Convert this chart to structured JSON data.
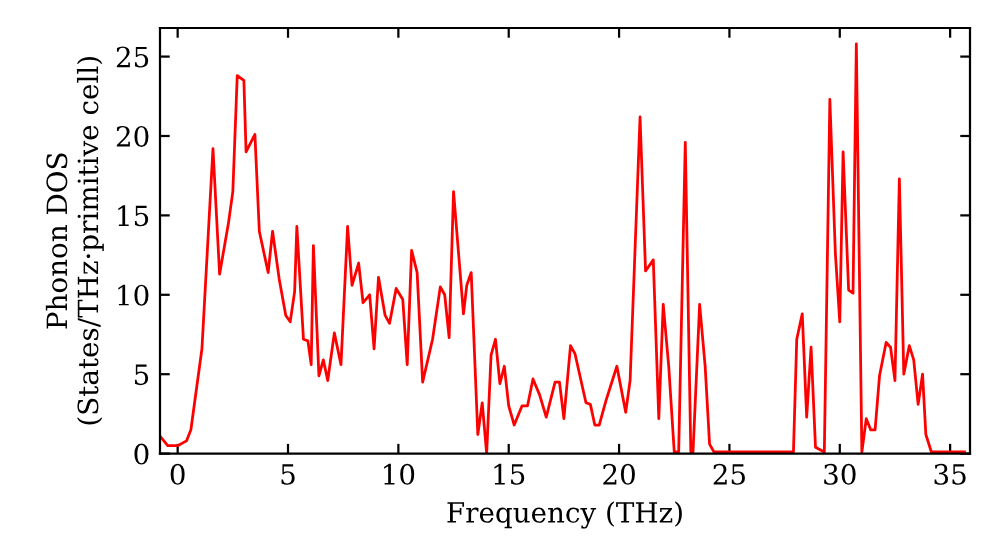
{
  "chart_data": {
    "type": "line",
    "xlabel": "Frequency (THz)",
    "ylabel": "Phonon DOS\n(States/THz·primitive cell)",
    "xlim": [
      -0.8,
      35.9
    ],
    "ylim": [
      0,
      26.8
    ],
    "xticks": [
      0,
      5,
      10,
      15,
      20,
      25,
      30,
      35
    ],
    "yticks": [
      0,
      5,
      10,
      15,
      20,
      25
    ],
    "grid": false,
    "line_style": "solid",
    "series": [
      {
        "color": "#ff0000",
        "x": [
          -0.8,
          -0.45,
          0,
          0.4,
          0.6,
          1.1,
          1.6,
          1.9,
          2.3,
          2.5,
          2.7,
          3.0,
          3.1,
          3.5,
          3.7,
          4.1,
          4.3,
          4.6,
          4.9,
          5.1,
          5.3,
          5.4,
          5.7,
          5.9,
          6.05,
          6.15,
          6.4,
          6.6,
          6.8,
          7.1,
          7.4,
          7.7,
          7.9,
          8.2,
          8.4,
          8.7,
          8.9,
          9.1,
          9.4,
          9.6,
          9.9,
          10.2,
          10.4,
          10.6,
          10.85,
          11.1,
          11.55,
          11.9,
          12.1,
          12.3,
          12.5,
          12.95,
          13.1,
          13.3,
          13.6,
          13.8,
          14.0,
          14.2,
          14.4,
          14.6,
          14.8,
          15.0,
          15.25,
          15.6,
          15.85,
          16.1,
          16.4,
          16.7,
          17.1,
          17.3,
          17.5,
          17.8,
          18.0,
          18.5,
          18.7,
          18.9,
          19.1,
          19.4,
          19.9,
          20.3,
          20.5,
          20.95,
          21.2,
          21.55,
          21.8,
          22.0,
          22.25,
          22.5,
          22.7,
          23.0,
          23.25,
          23.35,
          23.65,
          23.9,
          24.1,
          24.3,
          27.9,
          28.05,
          28.3,
          28.5,
          28.7,
          28.9,
          29.3,
          29.55,
          29.8,
          30.0,
          30.15,
          30.4,
          30.6,
          30.75,
          31.0,
          31.2,
          31.4,
          31.6,
          31.8,
          32.1,
          32.3,
          32.5,
          32.7,
          32.9,
          33.15,
          33.35,
          33.55,
          33.75,
          33.9,
          34.15,
          35.65
        ],
        "values": [
          1.1,
          0.5,
          0.5,
          0.8,
          1.5,
          6.6,
          19.2,
          11.3,
          14.5,
          16.5,
          23.8,
          23.5,
          19,
          20.1,
          14,
          11.4,
          14,
          11,
          8.7,
          8.3,
          10.2,
          14.3,
          7.2,
          7.1,
          5.6,
          13.1,
          4.9,
          5.9,
          4.6,
          7.6,
          5.6,
          14.3,
          10.6,
          12,
          9.5,
          10,
          6.6,
          11.1,
          8.7,
          8.2,
          10.4,
          9.7,
          5.6,
          12.8,
          11.4,
          4.5,
          7.2,
          10.5,
          10,
          7.3,
          16.5,
          8.8,
          10.6,
          11.4,
          1.2,
          3.2,
          0,
          6.2,
          7.2,
          4.4,
          5.5,
          3.0,
          1.8,
          3.0,
          3.0,
          4.7,
          3.7,
          2.3,
          4.5,
          4.5,
          2.2,
          6.8,
          6.3,
          3.2,
          3.1,
          1.8,
          1.8,
          3.3,
          5.5,
          2.6,
          4.6,
          21.2,
          11.5,
          12.2,
          2.2,
          9.4,
          5.5,
          0.1,
          0.1,
          19.6,
          0.1,
          0.1,
          9.4,
          5.5,
          0.6,
          0.1,
          0.1,
          7.2,
          8.8,
          2.3,
          6.7,
          0.4,
          0.1,
          22.3,
          12.6,
          8.3,
          19,
          10.3,
          10.1,
          25.8,
          0.1,
          2.2,
          1.5,
          1.5,
          4.9,
          7.0,
          6.7,
          4.6,
          17.3,
          5.0,
          6.8,
          5.9,
          3.1,
          5.0,
          1.2,
          0.1,
          0.1
        ]
      }
    ]
  }
}
